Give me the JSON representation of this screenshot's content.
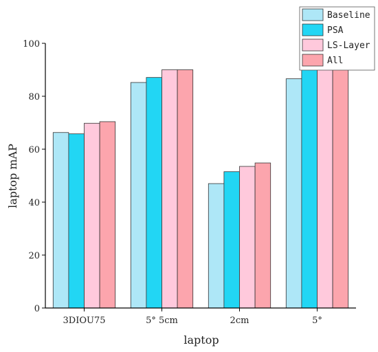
{
  "chart_data": {
    "type": "bar",
    "title": "",
    "xlabel": "laptop",
    "ylabel": "laptop mAP",
    "categories": [
      "3DIOU75",
      "5° 5cm",
      "2cm",
      "5°"
    ],
    "ylim": [
      0,
      100
    ],
    "yticks": [
      0,
      20,
      40,
      60,
      80,
      100
    ],
    "grid": false,
    "legend_position": "top-right",
    "series": [
      {
        "name": "Baseline",
        "color": "#aee7f7",
        "values": [
          66.3,
          85.2,
          47.0,
          86.6
        ]
      },
      {
        "name": "PSA",
        "color": "#22d6f4",
        "values": [
          65.8,
          87.1,
          51.5,
          90.2
        ]
      },
      {
        "name": "LS-Layer",
        "color": "#ffc9dc",
        "values": [
          69.8,
          90.0,
          53.5,
          91.3
        ]
      },
      {
        "name": "All",
        "color": "#fca5ad",
        "values": [
          70.4,
          90.0,
          54.8,
          91.0
        ]
      }
    ]
  }
}
